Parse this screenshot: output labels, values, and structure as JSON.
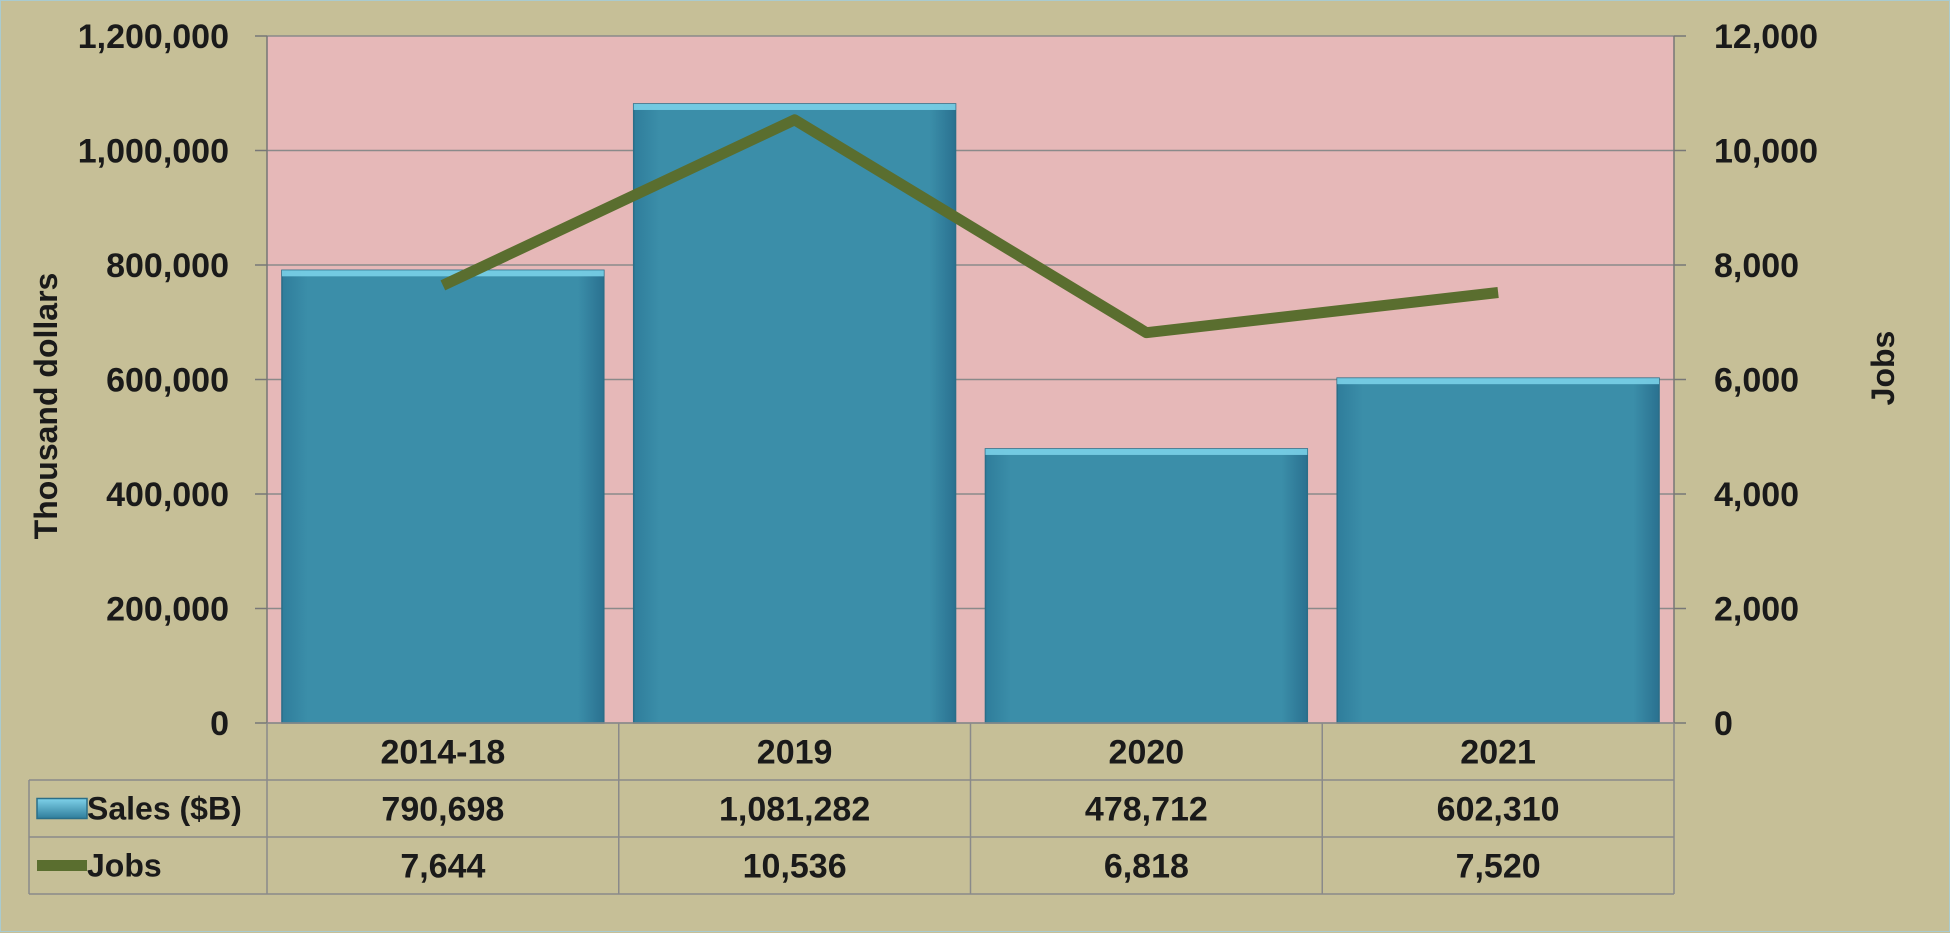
{
  "chart_data": {
    "type": "bar",
    "categories": [
      "2014-18",
      "2019",
      "2020",
      "2021"
    ],
    "series": [
      {
        "name": "Sales  ($B)",
        "kind": "bar",
        "axis": "left",
        "color": "#3a8aa9",
        "values": [
          790698,
          1081282,
          478712,
          602310
        ],
        "labels": [
          "790,698",
          "1,081,282",
          "478,712",
          "602,310"
        ]
      },
      {
        "name": "Jobs",
        "kind": "line",
        "axis": "right",
        "color": "#5a6e2f",
        "values": [
          7644,
          10536,
          6818,
          7520
        ],
        "labels": [
          "7,644",
          "10,536",
          "6,818",
          "7,520"
        ]
      }
    ],
    "ylabel": "Thousand dollars",
    "y2label": "Jobs",
    "ylim": [
      0,
      1200000
    ],
    "y2lim": [
      0,
      12000
    ],
    "yticks": [
      "0",
      "200,000",
      "400,000",
      "600,000",
      "800,000",
      "1,000,000",
      "1,200,000"
    ],
    "y2ticks": [
      "0",
      "2,000",
      "4,000",
      "6,000",
      "8,000",
      "10,000",
      "12,000"
    ],
    "grid": true,
    "legend": "data-table",
    "colors": {
      "page_background": "#c6bf97",
      "plot_background": "#e6b8b8",
      "gridline": "#8a8a8a"
    }
  }
}
